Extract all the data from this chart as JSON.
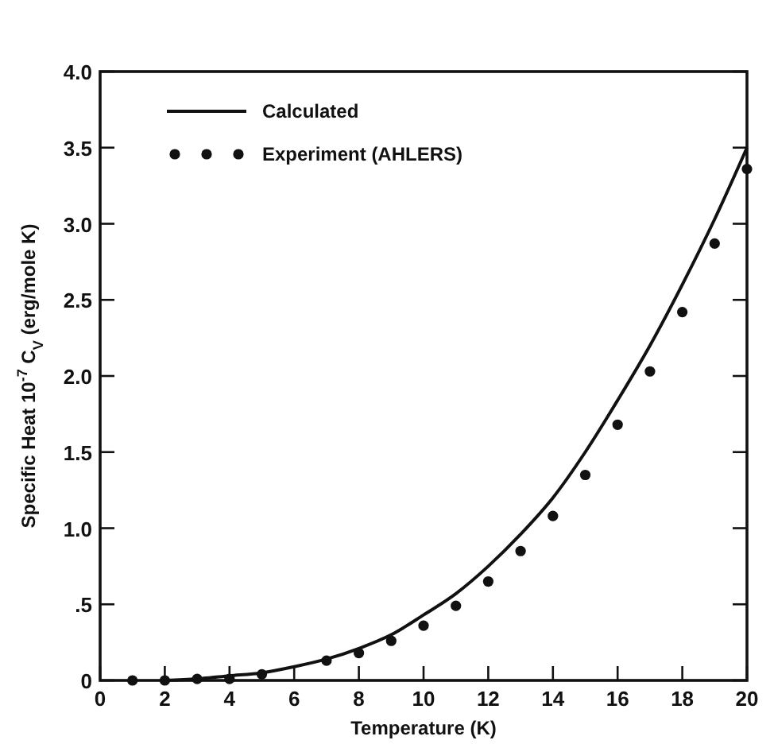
{
  "chart_data": {
    "type": "line",
    "xlabel": "Temperature (K)",
    "ylabel": "Specific Heat 10$^{-7}$ C$_{V}$ (erg/mole K)",
    "xlim": [
      0,
      20
    ],
    "ylim": [
      0,
      4.0
    ],
    "xticks": [
      0,
      2,
      4,
      6,
      8,
      10,
      12,
      14,
      16,
      18,
      20
    ],
    "yticks": [
      0,
      {
        "value": 0.5,
        "label": ".5"
      },
      {
        "value": 1,
        "label": "1.0"
      },
      {
        "value": 1.5,
        "label": "1.5"
      },
      {
        "value": 2,
        "label": "2.0"
      },
      {
        "value": 2.5,
        "label": "2.5"
      },
      {
        "value": 3,
        "label": "3.0"
      },
      {
        "value": 3.5,
        "label": "3.5"
      },
      {
        "value": 4,
        "label": "4.0"
      }
    ],
    "grid": false,
    "legend": "top left",
    "series": [
      {
        "name": "Calculated",
        "color": "#111111",
        "marker": "none",
        "line_style": "solid",
        "x": [
          2,
          3,
          4,
          5,
          6,
          7,
          8,
          9,
          10,
          11,
          12,
          13,
          14,
          15,
          16,
          17,
          18,
          19,
          20
        ],
        "values": [
          0,
          0.01,
          0.03,
          0.05,
          0.09,
          0.14,
          0.21,
          0.3,
          0.43,
          0.57,
          0.75,
          0.96,
          1.2,
          1.5,
          1.84,
          2.2,
          2.6,
          3.03,
          3.5
        ]
      },
      {
        "name": "Experiment (AHLERS)",
        "type": "scatter",
        "color": "#111111",
        "marker": "circle",
        "x": [
          1,
          2,
          3,
          4,
          5,
          7,
          8,
          9,
          10,
          11,
          12,
          13,
          14,
          15,
          16,
          17,
          18,
          19,
          20
        ],
        "values": [
          0,
          0,
          0.01,
          0.01,
          0.04,
          0.13,
          0.18,
          0.26,
          0.36,
          0.49,
          0.65,
          0.85,
          1.08,
          1.35,
          1.68,
          2.03,
          2.42,
          2.87,
          3.36
        ]
      }
    ]
  }
}
